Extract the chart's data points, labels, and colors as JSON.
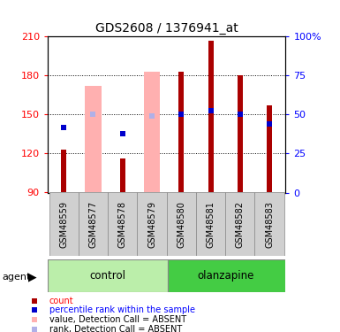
{
  "title": "GDS2608 / 1376941_at",
  "samples": [
    "GSM48559",
    "GSM48577",
    "GSM48578",
    "GSM48579",
    "GSM48580",
    "GSM48581",
    "GSM48582",
    "GSM48583"
  ],
  "y_min": 90,
  "y_max": 210,
  "y_ticks": [
    90,
    120,
    150,
    180,
    210
  ],
  "y2_ticks": [
    0,
    25,
    50,
    75,
    100
  ],
  "count_values": [
    123,
    null,
    116,
    null,
    183,
    207,
    180,
    157
  ],
  "rank_values": [
    140,
    null,
    135,
    null,
    150,
    153,
    150,
    143
  ],
  "absent_value_bars": [
    null,
    172,
    null,
    183,
    null,
    null,
    null,
    null
  ],
  "absent_rank_squares": [
    null,
    150,
    null,
    149,
    null,
    null,
    null,
    null
  ],
  "bar_color": "#aa0000",
  "rank_color": "#0000cc",
  "absent_bar_color": "#ffb0b0",
  "absent_rank_color": "#b0b0e8",
  "control_bg_light": "#bbeeaa",
  "control_bg": "#bbeeaa",
  "olanzapine_bg": "#44cc44",
  "sample_bg": "#d0d0d0",
  "figsize": [
    3.85,
    3.75
  ],
  "dpi": 100
}
